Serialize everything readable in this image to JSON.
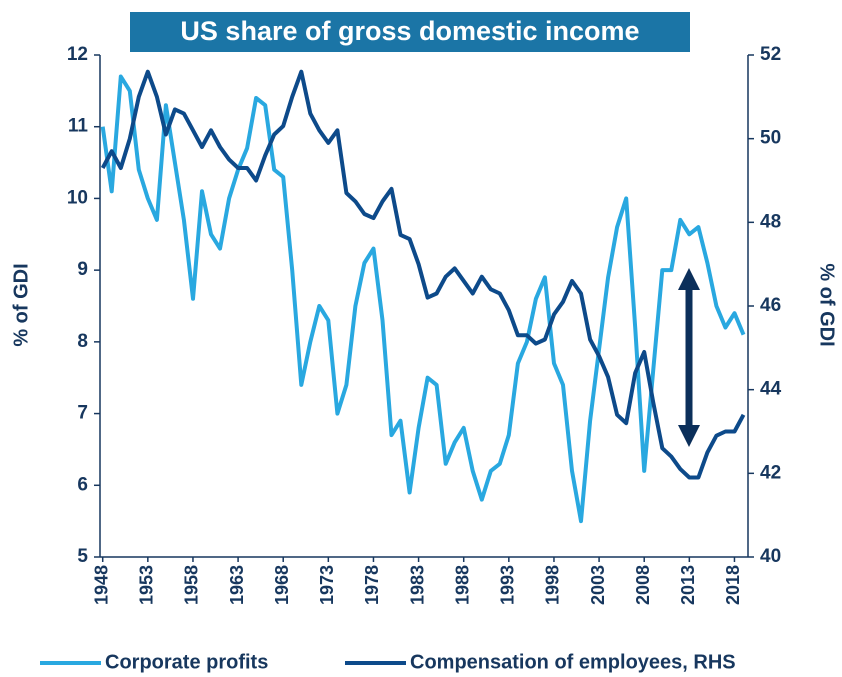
{
  "chart_data": {
    "type": "line",
    "title": "US share of gross domestic income",
    "x": [
      1948,
      1949,
      1950,
      1951,
      1952,
      1953,
      1954,
      1955,
      1956,
      1957,
      1958,
      1959,
      1960,
      1961,
      1962,
      1963,
      1964,
      1965,
      1966,
      1967,
      1968,
      1969,
      1970,
      1971,
      1972,
      1973,
      1974,
      1975,
      1976,
      1977,
      1978,
      1979,
      1980,
      1981,
      1982,
      1983,
      1984,
      1985,
      1986,
      1987,
      1988,
      1989,
      1990,
      1991,
      1992,
      1993,
      1994,
      1995,
      1996,
      1997,
      1998,
      1999,
      2000,
      2001,
      2002,
      2003,
      2004,
      2005,
      2006,
      2007,
      2008,
      2009,
      2010,
      2011,
      2012,
      2013,
      2014,
      2015,
      2016,
      2017,
      2018,
      2019
    ],
    "series": [
      {
        "name": "Corporate profits",
        "color": "#29a8e0",
        "axis": "y",
        "values": [
          11.0,
          10.1,
          11.7,
          11.5,
          10.4,
          10.0,
          9.7,
          11.3,
          10.5,
          9.7,
          8.6,
          10.1,
          9.5,
          9.3,
          10.0,
          10.4,
          10.7,
          11.4,
          11.3,
          10.4,
          10.3,
          9.0,
          7.4,
          8.0,
          8.5,
          8.3,
          7.0,
          7.4,
          8.5,
          9.1,
          9.3,
          8.3,
          6.7,
          6.9,
          5.9,
          6.8,
          7.5,
          7.4,
          6.3,
          6.6,
          6.8,
          6.2,
          5.8,
          6.2,
          6.3,
          6.7,
          7.7,
          8.0,
          8.6,
          8.9,
          7.7,
          7.4,
          6.2,
          5.5,
          6.9,
          7.9,
          8.9,
          9.6,
          10.0,
          8.2,
          6.2,
          7.6,
          9.0,
          9.0,
          9.7,
          9.5,
          9.6,
          9.1,
          8.5,
          8.2,
          8.4,
          8.1
        ]
      },
      {
        "name": "Compensation of employees, RHS",
        "color": "#0d4a8a",
        "axis": "y2",
        "values": [
          49.3,
          49.7,
          49.3,
          50.0,
          51.0,
          51.6,
          51.0,
          50.1,
          50.7,
          50.6,
          50.2,
          49.8,
          50.2,
          49.8,
          49.5,
          49.3,
          49.3,
          49.0,
          49.6,
          50.1,
          50.3,
          51.0,
          51.6,
          50.6,
          50.2,
          49.9,
          50.2,
          48.7,
          48.5,
          48.2,
          48.1,
          48.5,
          48.8,
          47.7,
          47.6,
          47.0,
          46.2,
          46.3,
          46.7,
          46.9,
          46.6,
          46.3,
          46.7,
          46.4,
          46.3,
          45.9,
          45.3,
          45.3,
          45.1,
          45.2,
          45.8,
          46.1,
          46.6,
          46.3,
          45.2,
          44.8,
          44.3,
          43.4,
          43.2,
          44.4,
          44.9,
          43.7,
          42.6,
          42.4,
          42.1,
          41.9,
          41.9,
          42.5,
          42.9,
          43.0,
          43.0,
          43.4
        ]
      }
    ],
    "ylabel": "% of GDI",
    "y2label": "% of GDI",
    "xlim": [
      1947.7,
      2019.5
    ],
    "xticks": [
      1948,
      1953,
      1958,
      1963,
      1968,
      1973,
      1978,
      1983,
      1988,
      1993,
      1998,
      2003,
      2008,
      2013,
      2018
    ],
    "ylim": [
      5,
      12
    ],
    "yticks": [
      5,
      6,
      7,
      8,
      9,
      10,
      11,
      12
    ],
    "y2lim": [
      40,
      52
    ],
    "y2ticks": [
      40,
      42,
      44,
      46,
      48,
      50,
      52
    ]
  }
}
